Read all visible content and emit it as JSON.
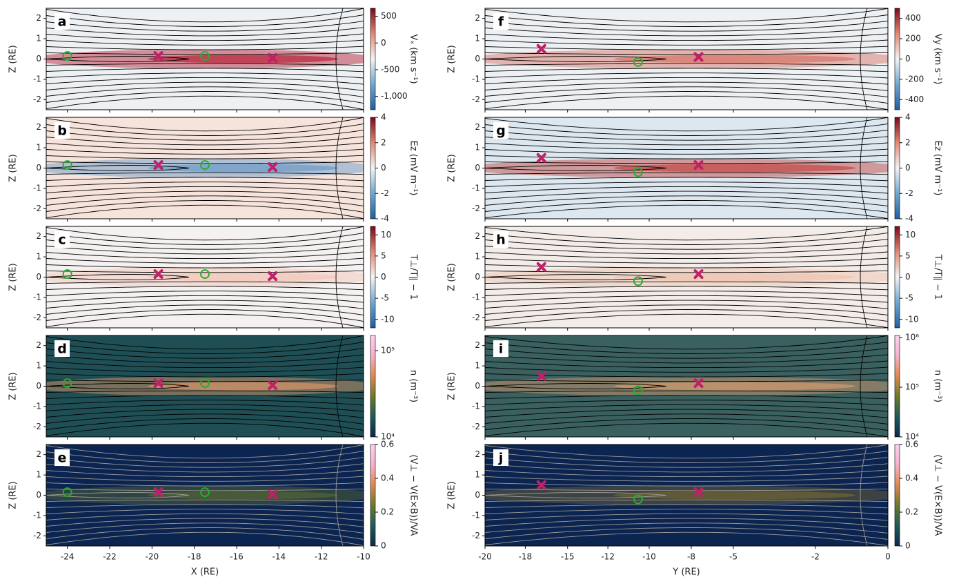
{
  "chart_data": [
    {
      "type": "scatter",
      "label": "a",
      "ylabel": "Z (RE)",
      "xlim": [
        -25,
        -10
      ],
      "xticks": [
        -24,
        -22,
        -20,
        -18,
        -16,
        -14,
        -12,
        -10
      ],
      "ylim": [
        -2.5,
        2.5
      ],
      "yticks": [
        -2,
        -1,
        0,
        1,
        2
      ],
      "background": "#eef1f3",
      "sheet_color": "#b0142a",
      "line_color": "#000000",
      "series": [
        {
          "marker": "circle",
          "color": "#22b02a",
          "x": [
            -24,
            -17.5
          ],
          "y": [
            0.15,
            0.15
          ]
        },
        {
          "marker": "cross",
          "color": "#c0206a",
          "x": [
            -19.7,
            -14.3
          ],
          "y": [
            0.15,
            0.05
          ]
        }
      ],
      "colorbar": {
        "label": "Vₓ (km s⁻¹)",
        "lim": [
          -1250,
          650
        ],
        "ticks": [
          500,
          0,
          -500,
          {
            "value": -1000,
            "label": "-1,000"
          }
        ],
        "log": false,
        "colors": [
          "#1f5fa0",
          "#6fa7d0",
          "#f3f3f3",
          "#e08a74",
          "#7a0a1a"
        ]
      }
    },
    {
      "type": "scatter",
      "label": "b",
      "ylabel": "Z (RE)",
      "xlim": [
        -25,
        -10
      ],
      "xticks": [
        -24,
        -22,
        -20,
        -18,
        -16,
        -14,
        -12,
        -10
      ],
      "ylim": [
        -2.5,
        2.5
      ],
      "yticks": [
        -2,
        -1,
        0,
        1,
        2
      ],
      "background": "#f6e4dc",
      "sheet_color": "#5f95c8",
      "line_color": "#000000",
      "series": [
        {
          "marker": "circle",
          "color": "#22b02a",
          "x": [
            -24,
            -17.5
          ],
          "y": [
            0.15,
            0.15
          ]
        },
        {
          "marker": "cross",
          "color": "#c0206a",
          "x": [
            -19.7,
            -14.3
          ],
          "y": [
            0.15,
            0.05
          ]
        }
      ],
      "colorbar": {
        "label": "Ez (mV m⁻¹)",
        "lim": [
          -4,
          4
        ],
        "ticks": [
          4,
          2,
          0,
          -2,
          -4
        ],
        "log": false,
        "colors": [
          "#1f5fa0",
          "#6fa7d0",
          "#f3f3f3",
          "#e08a74",
          "#7a0a1a"
        ]
      }
    },
    {
      "type": "scatter",
      "label": "c",
      "ylabel": "Z (RE)",
      "xlim": [
        -25,
        -10
      ],
      "xticks": [
        -24,
        -22,
        -20,
        -18,
        -16,
        -14,
        -12,
        -10
      ],
      "ylim": [
        -2.5,
        2.5
      ],
      "yticks": [
        -2,
        -1,
        0,
        1,
        2
      ],
      "background": "#f4f1f0",
      "sheet_color": "#f2c3b3",
      "line_color": "#000000",
      "series": [
        {
          "marker": "circle",
          "color": "#22b02a",
          "x": [
            -24,
            -17.5
          ],
          "y": [
            0.15,
            0.15
          ]
        },
        {
          "marker": "cross",
          "color": "#c0206a",
          "x": [
            -19.7,
            -14.3
          ],
          "y": [
            0.15,
            0.05
          ]
        }
      ],
      "colorbar": {
        "label": "T⊥/T∥ − 1",
        "lim": [
          -12,
          12
        ],
        "ticks": [
          10,
          5,
          0,
          -5,
          -10
        ],
        "log": false,
        "colors": [
          "#1f5fa0",
          "#6fa7d0",
          "#f3f3f3",
          "#e08a74",
          "#7a0a1a"
        ]
      }
    },
    {
      "type": "scatter",
      "label": "d",
      "ylabel": "Z (RE)",
      "xlim": [
        -25,
        -10
      ],
      "xticks": [
        -24,
        -22,
        -20,
        -18,
        -16,
        -14,
        -12,
        -10
      ],
      "ylim": [
        -2.5,
        2.5
      ],
      "yticks": [
        -2,
        -1,
        0,
        1,
        2
      ],
      "background": "#1f4f55",
      "sheet_color": "#e89a6a",
      "line_color": "#000000",
      "series": [
        {
          "marker": "circle",
          "color": "#22b02a",
          "x": [
            -24,
            -17.5
          ],
          "y": [
            0.15,
            0.15
          ]
        },
        {
          "marker": "cross",
          "color": "#c0206a",
          "x": [
            -19.7,
            -14.3
          ],
          "y": [
            0.15,
            0.05
          ]
        }
      ],
      "colorbar": {
        "label": "n (m⁻³)",
        "lim": [
          10000,
          150000
        ],
        "ticks": [
          {
            "value": 100000,
            "label": "10⁵"
          },
          {
            "value": 10000,
            "label": "10⁴"
          }
        ],
        "log": true,
        "colors": [
          "#0c2a4a",
          "#1f5a5a",
          "#6b7a2a",
          "#e08850",
          "#f8b0c8",
          "#fbd0f0"
        ]
      }
    },
    {
      "type": "scatter",
      "label": "e",
      "ylabel": "Z (RE)",
      "xlabel": "X (RE)",
      "xtick_labels": true,
      "xlim": [
        -25,
        -10
      ],
      "xticks": [
        -24,
        -22,
        -20,
        -18,
        -16,
        -14,
        -12,
        -10
      ],
      "ylim": [
        -2.5,
        2.5
      ],
      "yticks": [
        -2,
        -1,
        0,
        1,
        2
      ],
      "background": "#0c2450",
      "sheet_color": "#5a6a30",
      "line_color": "#9a9a9a",
      "series": [
        {
          "marker": "circle",
          "color": "#22b02a",
          "x": [
            -24,
            -17.5
          ],
          "y": [
            0.15,
            0.15
          ]
        },
        {
          "marker": "cross",
          "color": "#c0206a",
          "x": [
            -19.7,
            -14.3
          ],
          "y": [
            0.15,
            0.05
          ]
        }
      ],
      "colorbar": {
        "label": "(V⊥ − V(E×B))/VA",
        "lim": [
          0,
          0.6
        ],
        "ticks": [
          0.6,
          0.4,
          0.2,
          0
        ],
        "log": false,
        "colors": [
          "#0c2a4a",
          "#1f5a5a",
          "#6b7a2a",
          "#e08850",
          "#f8b0c8",
          "#fbd0f0"
        ]
      }
    },
    {
      "type": "scatter",
      "label": "f",
      "ylabel": "Z (RE)",
      "xlim": [
        -20,
        0
      ],
      "xticks": [
        -20,
        -18,
        {
          "value": -15.9,
          "label": "-15"
        },
        {
          "value": -13.9,
          "label": "-12"
        },
        {
          "value": -11.85,
          "label": "-10"
        },
        {
          "value": -9.76,
          "label": "-8"
        },
        {
          "value": -7.67,
          "label": "-5"
        },
        {
          "value": -3.6,
          "label": "-2"
        },
        0
      ],
      "ylim": [
        -2.5,
        2.5
      ],
      "yticks": [
        -2,
        -1,
        0,
        1,
        2
      ],
      "background": "#eef1f4",
      "sheet_color": "#d46a5a",
      "line_color": "#000000",
      "series": [
        {
          "marker": "circle",
          "color": "#22b02a",
          "x": [
            -12.4
          ],
          "y": [
            -0.15
          ]
        },
        {
          "marker": "cross",
          "color": "#c0206a",
          "x": [
            -17.2,
            -9.4
          ],
          "y": [
            0.5,
            0.1
          ]
        }
      ],
      "colorbar": {
        "label": "Vy (km s⁻¹)",
        "lim": [
          -500,
          500
        ],
        "ticks": [
          400,
          200,
          0,
          -200,
          -400
        ],
        "log": false,
        "colors": [
          "#1f5fa0",
          "#6fa7d0",
          "#f3f3f3",
          "#e08a74",
          "#7a0a1a"
        ]
      }
    },
    {
      "type": "scatter",
      "label": "g",
      "ylabel": "Z (RE)",
      "xlim": [
        -20,
        0
      ],
      "xticks": [
        -20,
        -18,
        {
          "value": -15.9,
          "label": "-15"
        },
        {
          "value": -13.9,
          "label": "-12"
        },
        {
          "value": -11.85,
          "label": "-10"
        },
        {
          "value": -9.76,
          "label": "-8"
        },
        {
          "value": -7.67,
          "label": "-5"
        },
        {
          "value": -3.6,
          "label": "-2"
        },
        0
      ],
      "ylim": [
        -2.5,
        2.5
      ],
      "yticks": [
        -2,
        -1,
        0,
        1,
        2
      ],
      "background": "#dde7ef",
      "sheet_color": "#c23a36",
      "line_color": "#000000",
      "series": [
        {
          "marker": "circle",
          "color": "#22b02a",
          "x": [
            -12.4
          ],
          "y": [
            -0.2
          ]
        },
        {
          "marker": "cross",
          "color": "#c0206a",
          "x": [
            -17.2,
            -9.4
          ],
          "y": [
            0.5,
            0.15
          ]
        }
      ],
      "colorbar": {
        "label": "Ez (mV m⁻¹)",
        "lim": [
          -4,
          4
        ],
        "ticks": [
          4,
          2,
          0,
          -2,
          -4
        ],
        "log": false,
        "colors": [
          "#1f5fa0",
          "#6fa7d0",
          "#f3f3f3",
          "#e08a74",
          "#7a0a1a"
        ]
      }
    },
    {
      "type": "scatter",
      "label": "h",
      "ylabel": "Z (RE)",
      "xlim": [
        -20,
        0
      ],
      "xticks": [
        -20,
        -18,
        {
          "value": -15.9,
          "label": "-15"
        },
        {
          "value": -13.9,
          "label": "-12"
        },
        {
          "value": -11.85,
          "label": "-10"
        },
        {
          "value": -9.76,
          "label": "-8"
        },
        {
          "value": -7.67,
          "label": "-5"
        },
        {
          "value": -3.6,
          "label": "-2"
        },
        0
      ],
      "ylim": [
        -2.5,
        2.5
      ],
      "yticks": [
        -2,
        -1,
        0,
        1,
        2
      ],
      "background": "#f3ece8",
      "sheet_color": "#f0c2ac",
      "line_color": "#000000",
      "series": [
        {
          "marker": "circle",
          "color": "#22b02a",
          "x": [
            -12.4
          ],
          "y": [
            -0.2
          ]
        },
        {
          "marker": "cross",
          "color": "#c0206a",
          "x": [
            -17.2,
            -9.4
          ],
          "y": [
            0.5,
            0.15
          ]
        }
      ],
      "colorbar": {
        "label": "T⊥/T∥ − 1",
        "lim": [
          -12,
          12
        ],
        "ticks": [
          10,
          5,
          0,
          -5,
          -10
        ],
        "log": false,
        "colors": [
          "#1f5fa0",
          "#6fa7d0",
          "#f3f3f3",
          "#e08a74",
          "#7a0a1a"
        ]
      }
    },
    {
      "type": "scatter",
      "label": "i",
      "ylabel": "Z (RE)",
      "xlim": [
        -20,
        0
      ],
      "xticks": [
        -20,
        -18,
        {
          "value": -15.9,
          "label": "-15"
        },
        {
          "value": -13.9,
          "label": "-12"
        },
        {
          "value": -11.85,
          "label": "-10"
        },
        {
          "value": -9.76,
          "label": "-8"
        },
        {
          "value": -7.67,
          "label": "-5"
        },
        {
          "value": -3.6,
          "label": "-2"
        },
        0
      ],
      "ylim": [
        -2.5,
        2.5
      ],
      "yticks": [
        -2,
        -1,
        0,
        1,
        2
      ],
      "background": "#3a6060",
      "sheet_color": "#e0a070",
      "line_color": "#000000",
      "series": [
        {
          "marker": "circle",
          "color": "#22b02a",
          "x": [
            -12.4
          ],
          "y": [
            -0.2
          ]
        },
        {
          "marker": "cross",
          "color": "#c0206a",
          "x": [
            -17.2,
            -9.4
          ],
          "y": [
            0.5,
            0.15
          ]
        }
      ],
      "colorbar": {
        "label": "n (m⁻³)",
        "lim": [
          10000,
          1100000
        ],
        "ticks": [
          {
            "value": 1000000,
            "label": "10⁶"
          },
          {
            "value": 100000,
            "label": "10⁵"
          },
          {
            "value": 10000,
            "label": "10⁴"
          }
        ],
        "log": true,
        "colors": [
          "#0c2a4a",
          "#1f5a5a",
          "#6b7a2a",
          "#e08850",
          "#f8b0c8",
          "#fbd0f0"
        ]
      }
    },
    {
      "type": "scatter",
      "label": "j",
      "ylabel": "Z (RE)",
      "xlabel": "Y (RE)",
      "xtick_labels": true,
      "xlim": [
        -20,
        0
      ],
      "xticks": [
        -20,
        -18,
        {
          "value": -15.9,
          "label": "-15"
        },
        {
          "value": -13.9,
          "label": "-12"
        },
        {
          "value": -11.85,
          "label": "-10"
        },
        {
          "value": -9.76,
          "label": "-8"
        },
        {
          "value": -7.67,
          "label": "-5"
        },
        {
          "value": -3.6,
          "label": "-2"
        },
        0
      ],
      "ylim": [
        -2.5,
        2.5
      ],
      "yticks": [
        -2,
        -1,
        0,
        1,
        2
      ],
      "background": "#0c2450",
      "sheet_color": "#7a6a30",
      "line_color": "#9a9a9a",
      "series": [
        {
          "marker": "circle",
          "color": "#22b02a",
          "x": [
            -12.4
          ],
          "y": [
            -0.2
          ]
        },
        {
          "marker": "cross",
          "color": "#c0206a",
          "x": [
            -17.2,
            -9.4
          ],
          "y": [
            0.5,
            0.15
          ]
        }
      ],
      "colorbar": {
        "label": "(V⊥ − V(E×B))/VA",
        "lim": [
          0,
          0.6
        ],
        "ticks": [
          0.6,
          0.4,
          0.2,
          0
        ],
        "log": false,
        "colors": [
          "#0c2a4a",
          "#1f5a5a",
          "#6b7a2a",
          "#e08850",
          "#f8b0c8",
          "#fbd0f0"
        ]
      }
    }
  ]
}
